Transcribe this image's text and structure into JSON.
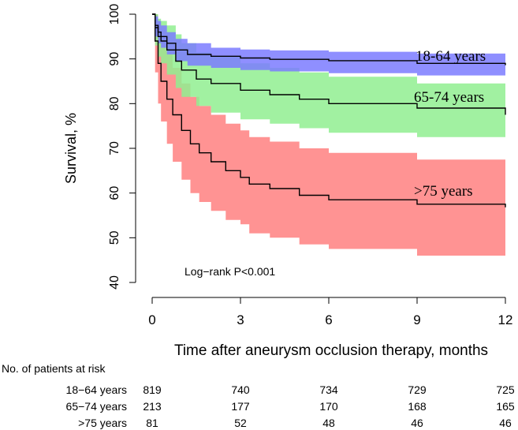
{
  "chart_data": {
    "type": "line",
    "subtype": "kaplan-meier survival with confidence bands",
    "title": "",
    "xlabel": "Time after aneurysm occlusion therapy, months",
    "ylabel": "Survival, %",
    "xlim": [
      0,
      12
    ],
    "ylim": [
      40,
      100
    ],
    "x_ticks": [
      0,
      3,
      6,
      9,
      12
    ],
    "y_ticks": [
      40,
      50,
      60,
      70,
      80,
      90,
      100
    ],
    "annotation": "Log−rank P<0.001",
    "series": [
      {
        "name": "18-64 years",
        "color": "#7b7bff",
        "x": [
          0,
          0.1,
          0.2,
          0.3,
          0.5,
          0.8,
          1.2,
          2,
          3,
          4,
          6,
          9,
          12
        ],
        "values": [
          100,
          97.5,
          96,
          95,
          93.5,
          92,
          91,
          90.6,
          90.2,
          89.9,
          89.6,
          89,
          88.6
        ],
        "lower": [
          100,
          95,
          93.5,
          92.5,
          91,
          89.5,
          88.5,
          88,
          87.5,
          87.2,
          86.8,
          86.3,
          86
        ],
        "upper": [
          100,
          99.5,
          98.5,
          97.5,
          96,
          94.5,
          93.5,
          92.5,
          92.1,
          91.9,
          91.6,
          91.2,
          90.8
        ]
      },
      {
        "name": "65-74 years",
        "color": "#90ee90",
        "x": [
          0,
          0.1,
          0.2,
          0.3,
          0.5,
          0.8,
          1,
          1.5,
          2,
          3,
          4,
          5,
          6,
          9,
          12
        ],
        "values": [
          100,
          97,
          95,
          94,
          92,
          89.5,
          87.5,
          85.5,
          84.5,
          83,
          82,
          81,
          80,
          79,
          77.5
        ],
        "lower": [
          100,
          93,
          90.5,
          89,
          86.5,
          83.5,
          81.5,
          79.5,
          78,
          76.5,
          75.5,
          74.5,
          73.5,
          72.5,
          71
        ],
        "upper": [
          100,
          100,
          99,
          98.5,
          97.5,
          95.5,
          93.5,
          91.5,
          90.5,
          89,
          88,
          87,
          86,
          84.5,
          83
        ]
      },
      {
        "name": ">75 years",
        "color": "#ff8080",
        "x": [
          0,
          0.1,
          0.2,
          0.3,
          0.5,
          0.7,
          1,
          1.3,
          1.6,
          2,
          2.5,
          3,
          3.3,
          4,
          5,
          6,
          9,
          12
        ],
        "values": [
          100,
          94,
          89,
          85,
          81,
          77.5,
          74,
          71,
          69,
          67,
          65,
          63.5,
          62,
          61,
          59.5,
          58.5,
          57.5,
          56.8
        ],
        "lower": [
          100,
          87,
          80,
          76,
          71,
          67,
          63,
          60,
          58,
          56,
          54,
          53,
          51,
          50,
          48.5,
          47.5,
          46,
          45.5
        ],
        "upper": [
          100,
          100,
          98,
          95,
          91,
          88,
          84.5,
          81.5,
          79.5,
          77.5,
          75.5,
          74,
          72.5,
          71.5,
          70,
          69,
          67.5,
          67
        ]
      }
    ],
    "series_labels": [
      "18-64 years",
      "65-74 years",
      ">75 years"
    ]
  },
  "risk_table": {
    "title": "No. of patients at risk",
    "rows": [
      {
        "label": "18−64 years",
        "values": [
          "819",
          "740",
          "734",
          "729",
          "725"
        ]
      },
      {
        "label": "65−74 years",
        "values": [
          "213",
          "177",
          "170",
          "168",
          "165"
        ]
      },
      {
        "label": ">75 years",
        "values": [
          "81",
          "52",
          "48",
          "46",
          "46"
        ]
      }
    ]
  }
}
